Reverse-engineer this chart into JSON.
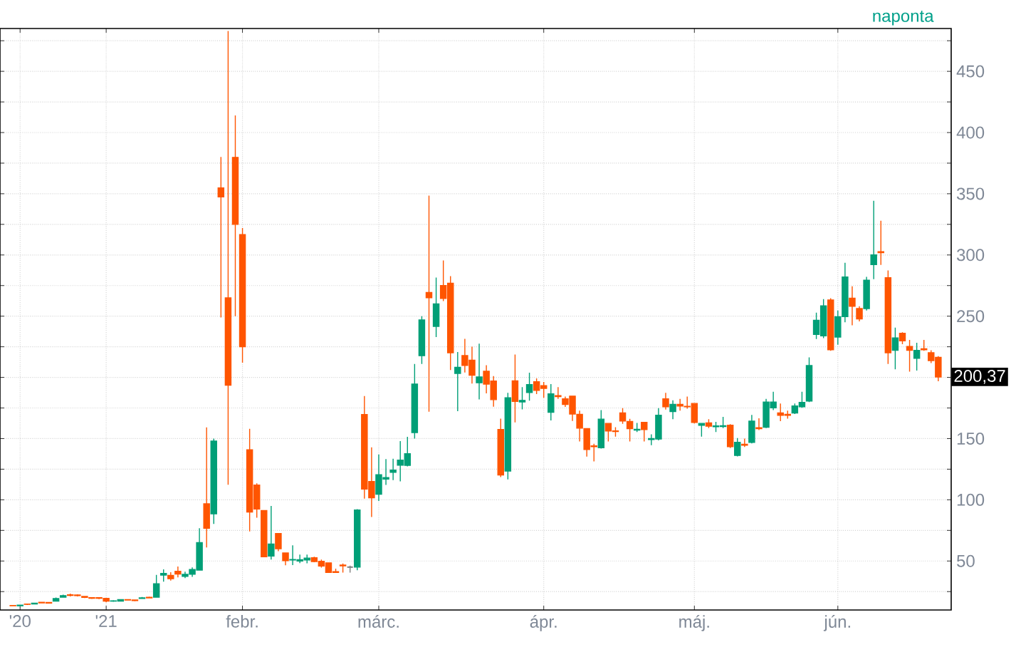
{
  "chart_data": {
    "type": "candlestick",
    "categories": [
      null,
      "'20",
      null,
      null,
      null,
      null,
      null,
      null,
      null,
      null,
      null,
      null,
      null,
      "'21",
      null,
      null,
      null,
      null,
      null,
      null,
      null,
      null,
      null,
      null,
      null,
      null,
      null,
      null,
      null,
      null,
      null,
      null,
      "febr.",
      null,
      null,
      null,
      null,
      null,
      null,
      null,
      null,
      null,
      null,
      null,
      null,
      null,
      null,
      null,
      null,
      null,
      null,
      "márc.",
      null,
      null,
      null,
      null,
      null,
      null,
      null,
      null,
      null,
      null,
      null,
      null,
      null,
      null,
      null,
      null,
      null,
      null,
      null,
      null,
      null,
      null,
      "ápr.",
      null,
      null,
      null,
      null,
      null,
      null,
      null,
      null,
      null,
      null,
      null,
      null,
      null,
      null,
      null,
      null,
      null,
      null,
      null,
      null,
      "máj.",
      null,
      null,
      null,
      null,
      null,
      null,
      null,
      null,
      null,
      null,
      null,
      null,
      null,
      null,
      null,
      null,
      null,
      null,
      null,
      "jún.",
      null,
      null,
      null,
      null,
      null,
      null,
      null,
      null,
      null,
      null,
      null,
      null,
      null,
      null
    ],
    "ohlc": [
      [
        13.7,
        14.0,
        13.3,
        13.5
      ],
      [
        13.4,
        14.2,
        13.2,
        13.9
      ],
      [
        14.8,
        15.2,
        14.0,
        14.6
      ],
      [
        14.9,
        16.0,
        14.6,
        15.5
      ],
      [
        16.2,
        16.5,
        15.4,
        15.8
      ],
      [
        16.1,
        16.4,
        15.3,
        15.6
      ],
      [
        17.3,
        20.1,
        16.8,
        19.3
      ],
      [
        20.5,
        22.5,
        20.0,
        21.7
      ],
      [
        22.4,
        23.3,
        21.0,
        21.9
      ],
      [
        22.2,
        22.8,
        21.0,
        21.7
      ],
      [
        21.0,
        21.5,
        19.8,
        20.3
      ],
      [
        20.1,
        20.5,
        19.0,
        19.6
      ],
      [
        20.0,
        20.5,
        18.9,
        19.6
      ],
      [
        19.4,
        19.5,
        16.3,
        17.3
      ],
      [
        17.3,
        18.0,
        16.7,
        17.4
      ],
      [
        17.3,
        18.9,
        17.1,
        18.4
      ],
      [
        18.5,
        18.9,
        17.7,
        18.1
      ],
      [
        18.2,
        18.3,
        17.1,
        17.7
      ],
      [
        19.4,
        20.6,
        19.0,
        19.9
      ],
      [
        20.4,
        20.9,
        19.5,
        19.9
      ],
      [
        20.4,
        38.6,
        20.0,
        31.4
      ],
      [
        38.5,
        43.1,
        33.1,
        39.9
      ],
      [
        38.3,
        40.8,
        34.0,
        35.5
      ],
      [
        41.6,
        45.5,
        36.6,
        39.4
      ],
      [
        37.4,
        41.2,
        36.1,
        39.1
      ],
      [
        39.2,
        44.8,
        37.0,
        43.0
      ],
      [
        42.6,
        76.8,
        42.3,
        65.0
      ],
      [
        96.7,
        159.2,
        61.1,
        76.8
      ],
      [
        88.6,
        150.0,
        80.2,
        148.0
      ],
      [
        354.8,
        380.0,
        249.0,
        347.5
      ],
      [
        265.0,
        483.0,
        112.3,
        193.6
      ],
      [
        379.7,
        414.0,
        250.0,
        325.0
      ],
      [
        316.6,
        322.0,
        212.0,
        225.0
      ],
      [
        140.8,
        158.0,
        74.2,
        90.0
      ],
      [
        112.0,
        113.4,
        85.3,
        92.4
      ],
      [
        91.2,
        91.5,
        53.3,
        53.5
      ],
      [
        54.0,
        95.0,
        51.1,
        63.8
      ],
      [
        72.4,
        72.7,
        58.0,
        60.0
      ],
      [
        56.6,
        57.0,
        46.5,
        50.3
      ],
      [
        50.8,
        62.8,
        46.6,
        51.2
      ],
      [
        50.0,
        55.3,
        48.2,
        51.1
      ],
      [
        50.8,
        55.2,
        48.1,
        52.4
      ],
      [
        52.7,
        53.5,
        49.0,
        49.5
      ],
      [
        49.8,
        51.2,
        44.6,
        45.9
      ],
      [
        48.5,
        48.9,
        40.7,
        40.7
      ],
      [
        41.3,
        43.7,
        40.5,
        40.6
      ],
      [
        46.7,
        48.0,
        40.6,
        46.0
      ],
      [
        45.0,
        46.2,
        40.5,
        45.0
      ],
      [
        45.0,
        92.4,
        42.5,
        91.7
      ],
      [
        169.6,
        184.7,
        101.0,
        108.7
      ],
      [
        115.0,
        142.9,
        86.0,
        101.7
      ],
      [
        104.5,
        137.0,
        99.0,
        120.4
      ],
      [
        116.9,
        133.2,
        112.2,
        118.2
      ],
      [
        122.5,
        133.5,
        116.0,
        124.2
      ],
      [
        128.2,
        147.9,
        115.0,
        132.4
      ],
      [
        128.1,
        151.5,
        127.3,
        137.7
      ],
      [
        154.9,
        210.9,
        150.0,
        194.5
      ],
      [
        217.7,
        249.9,
        210.9,
        246.9
      ],
      [
        269.4,
        348.5,
        172.0,
        265.0
      ],
      [
        241.6,
        281.5,
        233.0,
        260.0
      ],
      [
        275.0,
        295.5,
        262.3,
        264.5
      ],
      [
        276.9,
        282.7,
        206.0,
        220.1
      ],
      [
        203.2,
        220.7,
        172.4,
        208.2
      ],
      [
        217.8,
        231.5,
        204.0,
        209.8
      ],
      [
        214.0,
        225.0,
        195.0,
        201.8
      ],
      [
        195.6,
        227.6,
        182.0,
        200.3
      ],
      [
        205.0,
        209.9,
        187.0,
        194.5
      ],
      [
        197.0,
        201.0,
        176.0,
        181.8
      ],
      [
        157.4,
        166.3,
        118.6,
        120.3
      ],
      [
        123.5,
        187.4,
        116.6,
        183.3
      ],
      [
        197.2,
        218.6,
        163.2,
        180.4
      ],
      [
        180.0,
        192.1,
        173.8,
        181.2
      ],
      [
        187.6,
        203.9,
        181.0,
        194.1
      ],
      [
        196.4,
        199.2,
        186.4,
        189.4
      ],
      [
        193.3,
        196.3,
        183.3,
        191.0
      ],
      [
        171.5,
        194.5,
        164.8,
        186.6
      ],
      [
        185.1,
        192.1,
        182.5,
        184.3
      ],
      [
        182.5,
        184.3,
        175.9,
        177.9
      ],
      [
        184.7,
        185.0,
        164.4,
        170.1
      ],
      [
        169.8,
        172.9,
        147.7,
        158.5
      ],
      [
        158.1,
        158.1,
        135.3,
        141.1
      ],
      [
        144.0,
        145.7,
        131.4,
        143.4
      ],
      [
        142.6,
        173.3,
        141.8,
        165.9
      ],
      [
        162.4,
        162.8,
        147.7,
        156.2
      ],
      [
        156.3,
        159.3,
        151.6,
        155.8
      ],
      [
        171.0,
        174.8,
        162.0,
        164.3
      ],
      [
        164.0,
        166.2,
        147.7,
        158.1
      ],
      [
        156.9,
        162.8,
        155.4,
        157.6
      ],
      [
        163.2,
        163.5,
        147.7,
        157.4
      ],
      [
        149.2,
        153.5,
        144.6,
        150.0
      ],
      [
        149.6,
        174.8,
        148.5,
        169.0
      ],
      [
        182.5,
        187.4,
        173.7,
        176.0
      ],
      [
        172.0,
        181.3,
        165.9,
        177.9
      ],
      [
        177.9,
        182.5,
        172.9,
        176.6
      ],
      [
        176.4,
        184.3,
        174.5,
        176.0
      ],
      [
        178.7,
        179.0,
        162.4,
        163.2
      ],
      [
        160.9,
        162.8,
        151.6,
        162.4
      ],
      [
        162.8,
        165.9,
        158.5,
        160.1
      ],
      [
        159.7,
        163.6,
        155.4,
        160.3
      ],
      [
        159.9,
        167.8,
        158.5,
        160.5
      ],
      [
        160.9,
        161.7,
        142.2,
        143.4
      ],
      [
        136.2,
        150.4,
        135.4,
        146.9
      ],
      [
        145.4,
        150.0,
        143.1,
        144.6
      ],
      [
        146.9,
        169.4,
        146.1,
        164.3
      ],
      [
        158.9,
        166.6,
        156.9,
        158.1
      ],
      [
        159.3,
        182.5,
        158.5,
        179.8
      ],
      [
        175.2,
        188.2,
        173.3,
        179.8
      ],
      [
        170.9,
        178.7,
        164.3,
        169.0
      ],
      [
        169.8,
        172.9,
        166.3,
        169.0
      ],
      [
        170.9,
        178.7,
        170.1,
        176.7
      ],
      [
        176.0,
        188.2,
        175.2,
        179.5
      ],
      [
        180.6,
        216.3,
        179.8,
        209.7
      ],
      [
        235.1,
        252.9,
        231.3,
        246.7
      ],
      [
        233.9,
        264.0,
        232.0,
        258.5
      ],
      [
        263.2,
        264.7,
        221.7,
        222.5
      ],
      [
        232.9,
        254.6,
        226.7,
        249.6
      ],
      [
        249.6,
        293.6,
        245.0,
        282.0
      ],
      [
        264.7,
        274.4,
        242.5,
        258.1
      ],
      [
        256.2,
        258.1,
        245.8,
        247.7
      ],
      [
        256.2,
        282.1,
        254.6,
        279.4
      ],
      [
        292.2,
        344.2,
        280.2,
        300.0
      ],
      [
        302.7,
        328.0,
        291.8,
        301.9
      ],
      [
        281.4,
        287.3,
        210.9,
        220.1
      ],
      [
        222.1,
        240.7,
        206.6,
        232.2
      ],
      [
        236.0,
        236.8,
        227.1,
        229.8
      ],
      [
        225.2,
        230.6,
        204.7,
        222.1
      ],
      [
        215.6,
        228.3,
        205.5,
        222.1
      ],
      [
        223.3,
        230.6,
        221.7,
        222.5
      ],
      [
        220.1,
        222.1,
        211.7,
        213.7
      ],
      [
        216.4,
        217.4,
        196.9,
        200.37
      ]
    ],
    "colors": [
      "#ff5500",
      "#009f77",
      "#ff5500",
      "#009f77",
      "#ff5500",
      "#ff5500",
      "#009f77",
      "#009f77",
      "#ff5500",
      "#ff5500",
      "#ff5500",
      "#ff5500",
      "#ff5500",
      "#ff5500",
      "#009f77",
      "#009f77",
      "#ff5500",
      "#ff5500",
      "#009f77",
      "#ff5500",
      "#009f77",
      "#009f77",
      "#ff5500",
      "#ff5500",
      "#009f77",
      "#009f77",
      "#009f77",
      "#ff5500",
      "#009f77",
      "#ff5500",
      "#ff5500",
      "#ff5500",
      "#ff5500",
      "#ff5500",
      "#ff5500",
      "#ff5500",
      "#009f77",
      "#ff5500",
      "#ff5500",
      "#009f77",
      "#009f77",
      "#009f77",
      "#ff5500",
      "#ff5500",
      "#ff5500",
      "#ff5500",
      "#ff5500",
      "#7f7f7f",
      "#009f77",
      "#ff5500",
      "#ff5500",
      "#009f77",
      "#009f77",
      "#009f77",
      "#009f77",
      "#009f77",
      "#009f77",
      "#009f77",
      "#ff5500",
      "#009f77",
      "#ff5500",
      "#ff5500",
      "#009f77",
      "#ff5500",
      "#ff5500",
      "#009f77",
      "#ff5500",
      "#ff5500",
      "#ff5500",
      "#009f77",
      "#ff5500",
      "#009f77",
      "#009f77",
      "#ff5500",
      "#ff5500",
      "#009f77",
      "#ff5500",
      "#ff5500",
      "#ff5500",
      "#ff5500",
      "#ff5500",
      "#ff5500",
      "#009f77",
      "#ff5500",
      "#ff5500",
      "#ff5500",
      "#ff5500",
      "#009f77",
      "#ff5500",
      "#009f77",
      "#009f77",
      "#ff5500",
      "#009f77",
      "#ff5500",
      "#ff5500",
      "#ff5500",
      "#009f77",
      "#ff5500",
      "#009f77",
      "#009f77",
      "#ff5500",
      "#009f77",
      "#ff5500",
      "#009f77",
      "#ff5500",
      "#009f77",
      "#009f77",
      "#ff5500",
      "#ff5500",
      "#009f77",
      "#009f77",
      "#009f77",
      "#009f77",
      "#009f77",
      "#ff5500",
      "#009f77",
      "#009f77",
      "#ff5500",
      "#ff5500",
      "#009f77",
      "#009f77",
      "#ff5500",
      "#ff5500",
      "#009f77",
      "#ff5500",
      "#ff5500",
      "#009f77",
      "#ff5500",
      "#ff5500",
      "#ff5500"
    ],
    "ylim": [
      10,
      485
    ],
    "yticks": [
      {
        "value": 25,
        "label": null
      },
      50,
      {
        "value": 75,
        "label": null
      },
      100,
      {
        "value": 125,
        "label": null
      },
      150,
      {
        "value": 175,
        "label": null
      },
      {
        "value": 200,
        "label": null
      },
      {
        "value": 225,
        "label": null
      },
      250,
      {
        "value": 275,
        "label": null
      },
      300,
      {
        "value": 325,
        "label": null
      },
      350,
      {
        "value": 375,
        "label": null
      },
      400,
      {
        "value": 425,
        "label": null
      },
      450,
      {
        "value": 475,
        "label": null
      }
    ],
    "grid": true,
    "annotations": [
      "naponta",
      {
        "text": "200,37",
        "y": 200.37
      }
    ]
  }
}
